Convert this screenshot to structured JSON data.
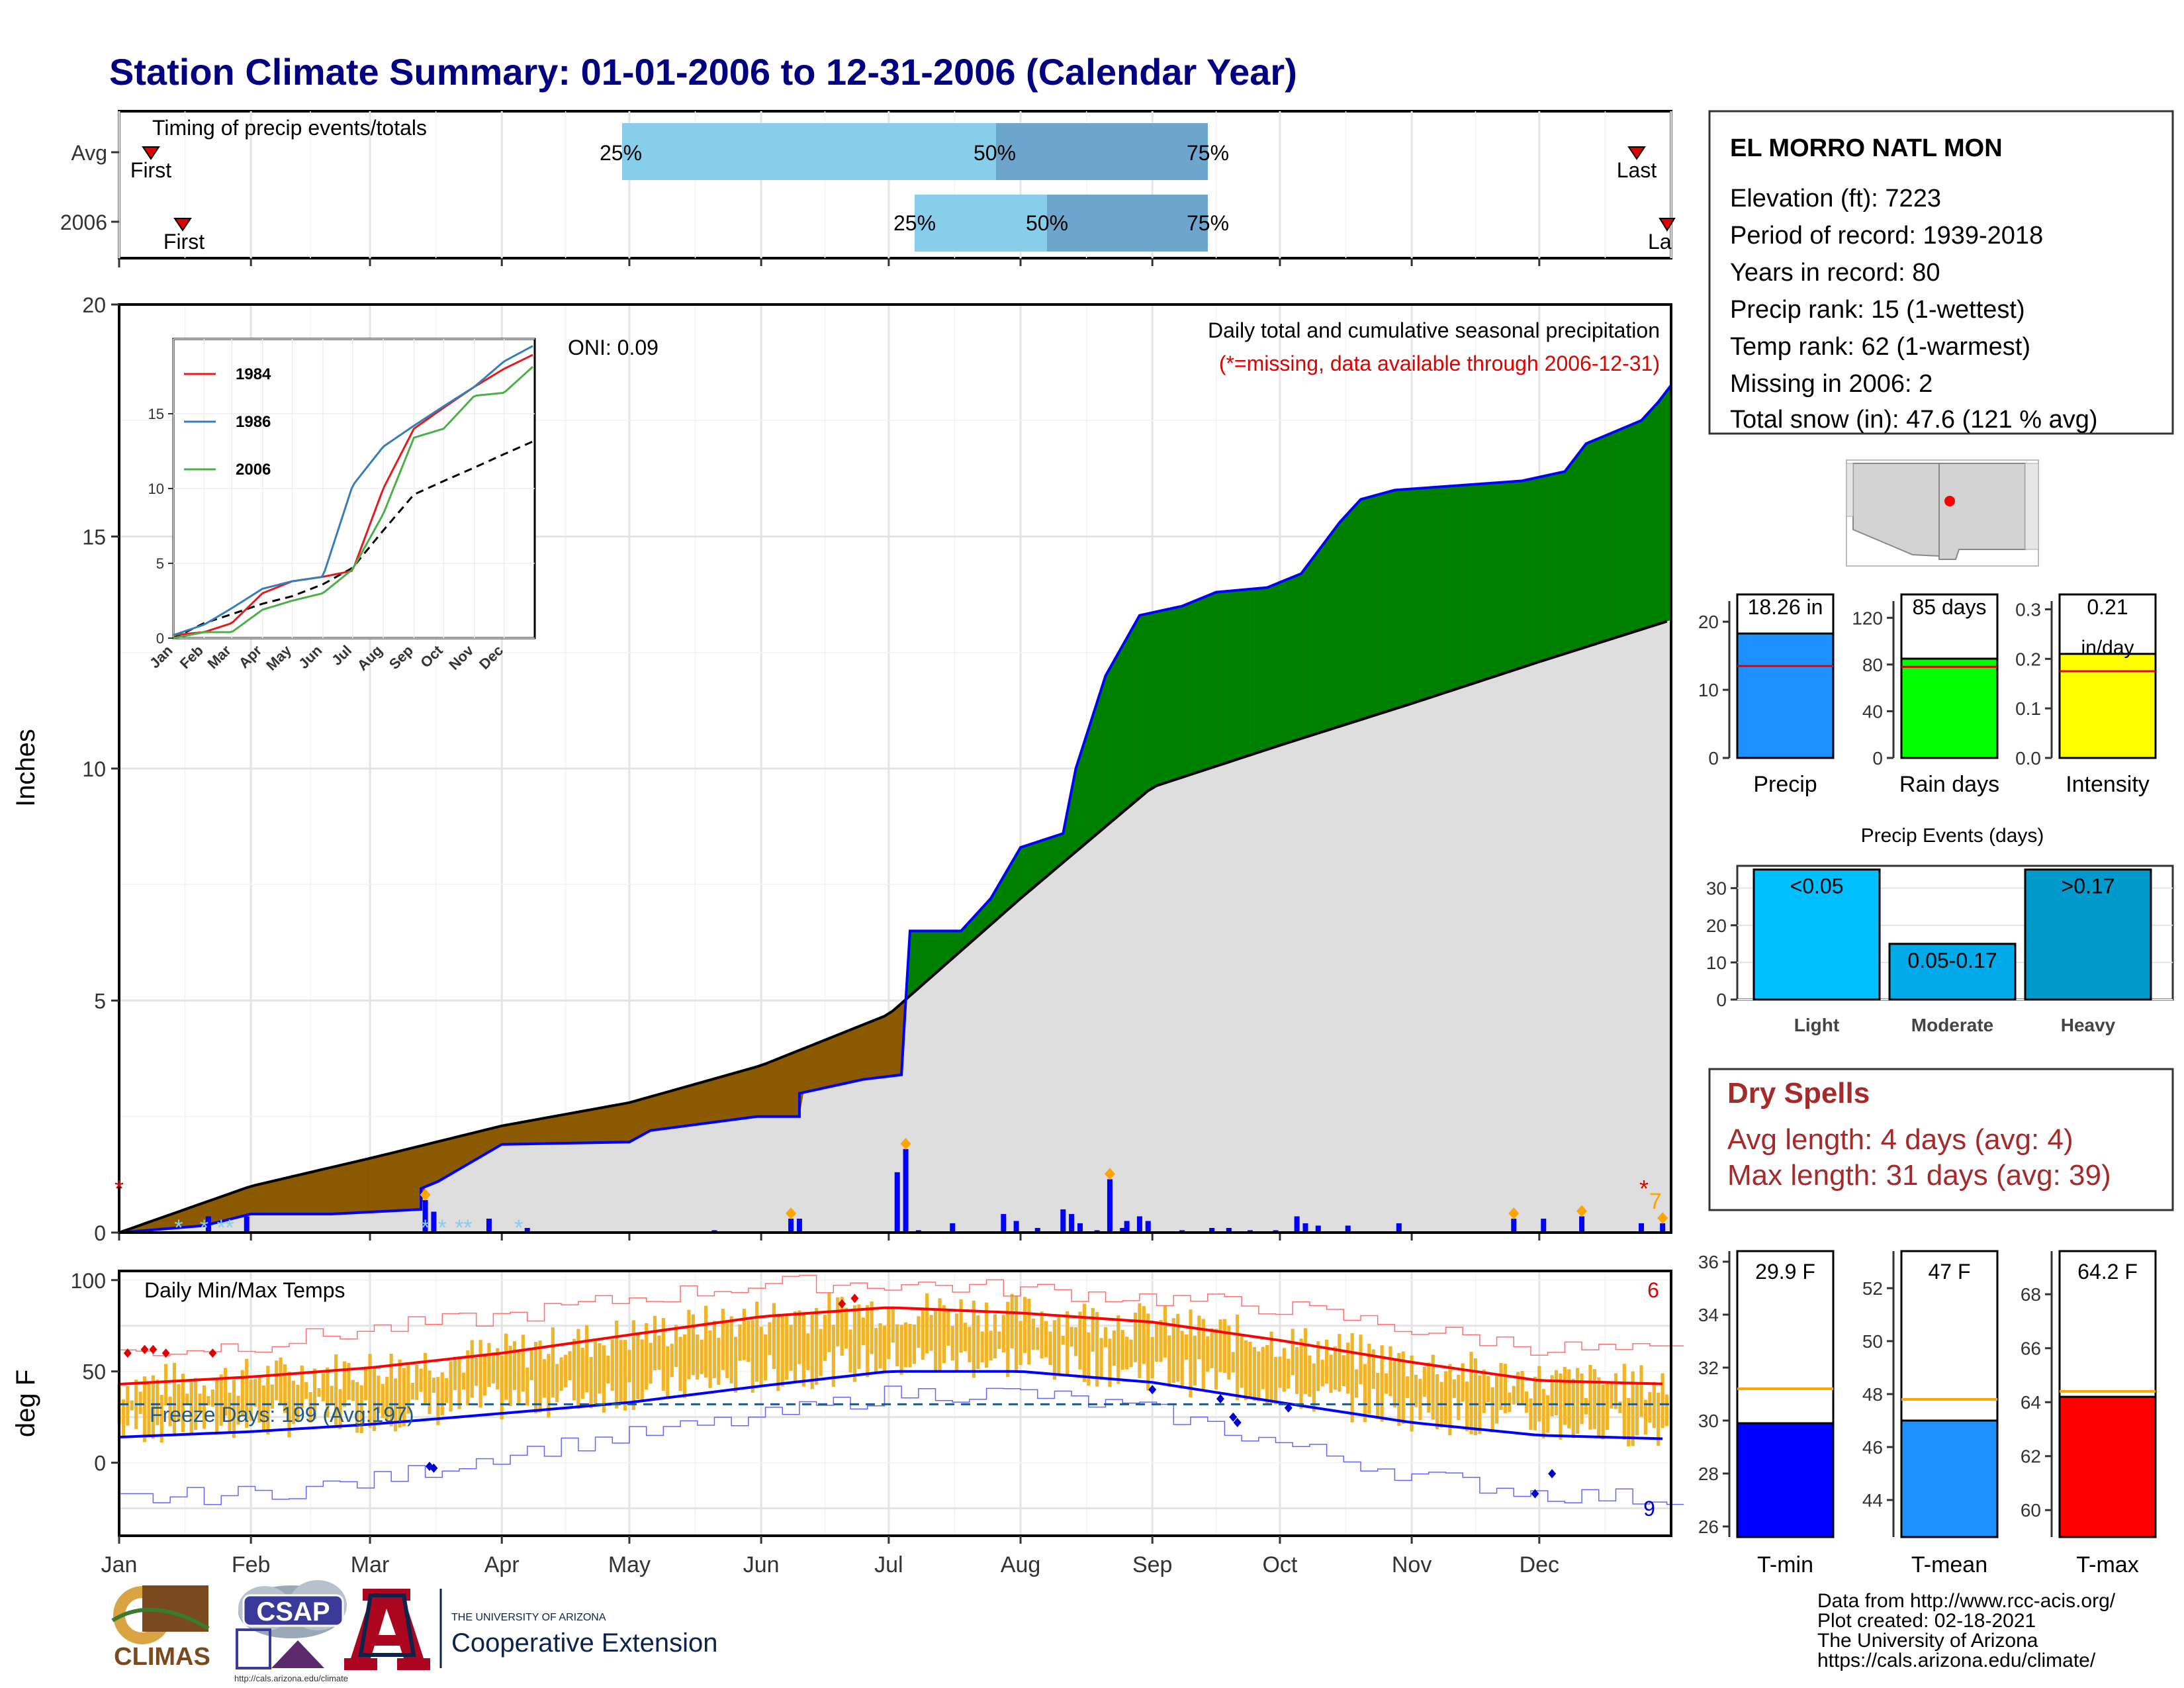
{
  "title": "Station Climate Summary: 01-01-2006 to 12-31-2006 (Calendar Year)",
  "timing": {
    "label": "Timing of precip events/totals",
    "rows": [
      {
        "name": "Avg",
        "first_label": "First",
        "last_label": "Last",
        "p25": "25%",
        "p50": "50%",
        "p75": "75%"
      },
      {
        "name": "2006",
        "first_label": "First",
        "last_label": "La",
        "p25": "25%",
        "p50": "50%",
        "p75": "75%"
      }
    ]
  },
  "station": {
    "name": "EL MORRO NATL MON",
    "lines": [
      "Elevation (ft): 7223",
      "Period of record: 1939-2018",
      "Years in record: 80",
      "Precip rank: 15 (1-wettest)",
      "Temp rank: 62 (1-warmest)",
      "Missing in 2006: 2",
      "Total snow (in): 47.6 (121 % avg)"
    ]
  },
  "precip_panel": {
    "ylabel": "Inches",
    "oni": "ONI: 0.09",
    "label1": "Daily total and cumulative seasonal precipitation",
    "label2": "(*=missing, data available through 2006-12-31)",
    "count_label": "7",
    "yticks": [
      "0",
      "5",
      "10",
      "15",
      "20"
    ]
  },
  "inset": {
    "legend": [
      "1984",
      "1986",
      "2006"
    ],
    "yticks": [
      "0",
      "5",
      "10",
      "15"
    ],
    "months": [
      "Jan",
      "Feb",
      "Mar",
      "Apr",
      "May",
      "Jun",
      "Jul",
      "Aug",
      "Sep",
      "Oct",
      "Nov",
      "Dec"
    ]
  },
  "temp_panel": {
    "ylabel": "deg F",
    "label": "Daily Min/Max Temps",
    "freeze": "Freeze Days: 199 (Avg:197)",
    "count_hi": "6",
    "count_lo": "9",
    "yticks": [
      "0",
      "50",
      "100"
    ]
  },
  "months": [
    "Jan",
    "Feb",
    "Mar",
    "Apr",
    "May",
    "Jun",
    "Jul",
    "Aug",
    "Sep",
    "Oct",
    "Nov",
    "Dec"
  ],
  "mini_bars": [
    {
      "label": "18.26 in",
      "sublabel": "",
      "name": "Precip",
      "ticks": [
        "0",
        "10",
        "20"
      ],
      "color": "#1E90FF"
    },
    {
      "label": "85 days",
      "sublabel": "",
      "name": "Rain days",
      "ticks": [
        "0",
        "40",
        "80",
        "120"
      ],
      "color": "#00FF00"
    },
    {
      "label": "0.21",
      "sublabel": "in/day",
      "name": "Intensity",
      "ticks": [
        "0.0",
        "0.1",
        "0.2",
        "0.3"
      ],
      "color": "#FFFF00"
    }
  ],
  "events": {
    "title": "Precip Events (days)",
    "ticks": [
      "0",
      "10",
      "20",
      "30"
    ],
    "bars": [
      {
        "name": "Light",
        "label": "<0.05",
        "color": "#00BFFF"
      },
      {
        "name": "Moderate",
        "label": "0.05-0.17",
        "color": "#00AAE8"
      },
      {
        "name": "Heavy",
        "label": ">0.17",
        "color": "#0099CC"
      }
    ]
  },
  "dry_spells": {
    "title": "Dry Spells",
    "avg": "Avg length: 4 days (avg: 4)",
    "max": "Max length: 31 days (avg: 39)"
  },
  "temp_bars": [
    {
      "label": "29.9 F",
      "name": "T-min",
      "ticks": [
        "26",
        "28",
        "30",
        "32",
        "34",
        "36"
      ],
      "color": "#0000FF"
    },
    {
      "label": "47 F",
      "name": "T-mean",
      "ticks": [
        "44",
        "46",
        "48",
        "50",
        "52"
      ],
      "color": "#1E90FF"
    },
    {
      "label": "64.2 F",
      "name": "T-max",
      "ticks": [
        "60",
        "62",
        "64",
        "66",
        "68"
      ],
      "color": "#FF0000"
    }
  ],
  "footer": [
    "Data from http://www.rcc-acis.org/",
    "Plot created: 02-18-2021",
    "The University of Arizona",
    "https://cals.arizona.edu/climate/"
  ],
  "logos": {
    "climas": "CLIMAS",
    "csap": "CSAP",
    "csap_url": "http://cals.arizona.edu/climate",
    "ua_small": "THE UNIVERSITY OF ARIZONA",
    "ua_big": "Cooperative Extension"
  },
  "chart_data": [
    {
      "type": "area",
      "title": "Daily total and cumulative seasonal precipitation",
      "ylabel": "Inches",
      "ylim": [
        0,
        20
      ],
      "x": [
        "Jan",
        "Feb",
        "Mar",
        "Apr",
        "May",
        "Jun",
        "Jul",
        "Aug",
        "Sep",
        "Oct",
        "Nov",
        "Dec",
        "Dec31"
      ],
      "series": [
        {
          "name": "2006",
          "values": [
            0.0,
            0.4,
            0.4,
            1.9,
            2.5,
            3.0,
            4.6,
            8.3,
            13.4,
            14.0,
            16.2,
            16.4,
            18.26
          ]
        },
        {
          "values": [
            0.0,
            1.0,
            1.6,
            2.3,
            2.8,
            3.6,
            4.7,
            7.2,
            9.6,
            10.5,
            11.4,
            12.3,
            13.2
          ]
        }
      ]
    },
    {
      "type": "line",
      "legend": "top-left",
      "ylim": [
        0,
        20
      ],
      "x": [
        "Jan",
        "Feb",
        "Mar",
        "Apr",
        "May",
        "Jun",
        "Jul",
        "Aug",
        "Sep",
        "Oct",
        "Nov",
        "Dec",
        "Dec31"
      ],
      "series": [
        {
          "name": "1984",
          "values": [
            0.2,
            0.4,
            1.0,
            3.0,
            3.8,
            4.1,
            4.5,
            10.0,
            14.0,
            15.4,
            16.8,
            18.0,
            19.0
          ]
        },
        {
          "name": "1986",
          "values": [
            0.2,
            0.9,
            2.0,
            3.3,
            3.8,
            4.1,
            10.2,
            12.8,
            14.2,
            15.5,
            16.8,
            18.5,
            19.6
          ]
        },
        {
          "name": "2006",
          "values": [
            0.0,
            0.4,
            0.4,
            1.9,
            2.5,
            3.0,
            4.6,
            8.3,
            13.4,
            14.0,
            16.2,
            16.4,
            18.26
          ]
        },
        {
          "values": [
            0.0,
            1.0,
            1.6,
            2.3,
            2.8,
            3.6,
            4.7,
            7.2,
            9.6,
            10.5,
            11.4,
            12.3,
            13.2
          ]
        }
      ]
    },
    {
      "type": "line",
      "title": "Daily Min/Max Temps",
      "ylabel": "deg F",
      "ylim": [
        -40,
        105
      ],
      "x": [
        "Jan",
        "Feb",
        "Mar",
        "Apr",
        "May",
        "Jun",
        "Jul",
        "Aug",
        "Sep",
        "Oct",
        "Nov",
        "Dec",
        "Dec31"
      ],
      "series": [
        {
          "name": "avg max",
          "values": [
            43,
            47,
            52,
            60,
            70,
            80,
            85,
            82,
            77,
            67,
            55,
            45,
            43
          ]
        },
        {
          "name": "avg min",
          "values": [
            14,
            17,
            21,
            27,
            33,
            42,
            50,
            50,
            44,
            33,
            22,
            15,
            13
          ]
        },
        {
          "name": "record max",
          "values": [
            60,
            65,
            73,
            80,
            90,
            98,
            98,
            95,
            90,
            85,
            73,
            63,
            60
          ]
        },
        {
          "name": "record min",
          "values": [
            -20,
            -17,
            -10,
            5,
            15,
            25,
            38,
            38,
            28,
            10,
            -7,
            -17,
            -20
          ]
        }
      ]
    },
    {
      "type": "bar",
      "categories": [
        "Precip",
        "Rain days",
        "Intensity"
      ],
      "values": [
        18.26,
        85,
        0.21
      ],
      "averages": [
        13.5,
        78,
        0.175
      ]
    },
    {
      "type": "bar",
      "title": "Precip Events (days)",
      "categories": [
        "Light",
        "Moderate",
        "Heavy"
      ],
      "values": [
        35,
        15,
        35
      ],
      "ylim": [
        0,
        36
      ]
    },
    {
      "type": "bar",
      "categories": [
        "T-min",
        "T-mean",
        "T-max"
      ],
      "values": [
        29.9,
        47,
        64.2
      ],
      "averages": [
        31.2,
        47.8,
        64.4
      ]
    }
  ]
}
